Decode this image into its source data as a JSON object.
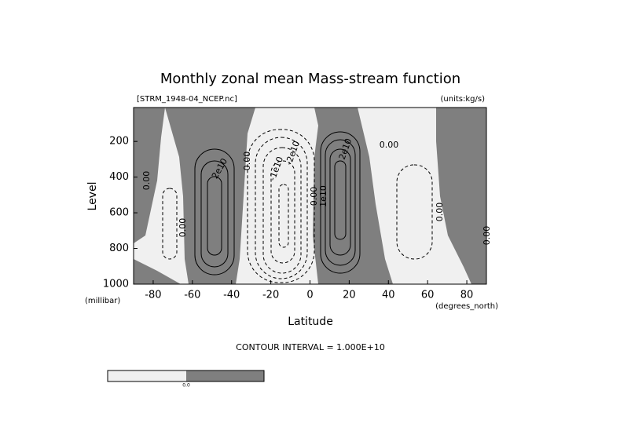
{
  "chart_data": {
    "type": "contour",
    "title": "Monthly zonal mean Mass-stream function",
    "subtitle": "[STRM_1948-04_NCEP.nc]",
    "units": "(units:kg/s)",
    "ylabel": "Level",
    "yunits": "(millibar)",
    "xlabel": "Latitude",
    "xunits": "(degrees_north)",
    "note": "CONTOUR INTERVAL = 1.000E+10",
    "xlim": [
      -90,
      90
    ],
    "xticks": [
      -80,
      -60,
      -40,
      -20,
      0,
      20,
      40,
      60,
      80
    ],
    "ylim": [
      1000,
      10
    ],
    "yticks": [
      200,
      400,
      600,
      800,
      1000
    ],
    "contour_labels": [
      "2e10",
      "0.00",
      "-2e10",
      "-1e10",
      "0.00",
      "1e10",
      "2e10",
      "0.00",
      "0.00",
      "0.00",
      "0.00",
      "0.00"
    ],
    "colorbar": {
      "labels": [
        "0.0"
      ],
      "colors": [
        "#f0f0f0",
        "#7f7f7f"
      ]
    }
  }
}
